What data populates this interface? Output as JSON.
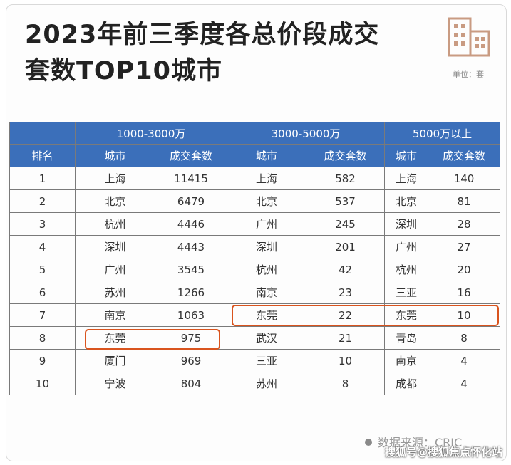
{
  "title": {
    "line1": "2023年前三季度各总价段成交",
    "line2": "套数TOP10城市"
  },
  "unit_label": "单位：套",
  "table": {
    "header_groups": [
      "1000-3000万",
      "3000-5000万",
      "5000万以上"
    ],
    "sub_headers": [
      "排名",
      "城市",
      "成交套数",
      "城市",
      "成交套数",
      "城市",
      "成交套数"
    ],
    "rows": [
      [
        "1",
        "上海",
        "11415",
        "上海",
        "582",
        "上海",
        "140"
      ],
      [
        "2",
        "北京",
        "6479",
        "北京",
        "537",
        "北京",
        "81"
      ],
      [
        "3",
        "杭州",
        "4446",
        "广州",
        "245",
        "深圳",
        "28"
      ],
      [
        "4",
        "深圳",
        "4443",
        "深圳",
        "201",
        "广州",
        "27"
      ],
      [
        "5",
        "广州",
        "3545",
        "杭州",
        "42",
        "杭州",
        "20"
      ],
      [
        "6",
        "苏州",
        "1266",
        "南京",
        "23",
        "三亚",
        "16"
      ],
      [
        "7",
        "南京",
        "1063",
        "东莞",
        "22",
        "东莞",
        "10"
      ],
      [
        "8",
        "东莞",
        "975",
        "武汉",
        "21",
        "青岛",
        "8"
      ],
      [
        "9",
        "厦门",
        "969",
        "三亚",
        "10",
        "南京",
        "4"
      ],
      [
        "10",
        "宁波",
        "804",
        "苏州",
        "8",
        "成都",
        "4"
      ]
    ]
  },
  "source": "数据来源：CRIC",
  "watermark": "搜狐号@搜狐焦点怀化站",
  "colors": {
    "header_bg": "#3b6fba",
    "highlight": "#d9541e",
    "logo": "#c99b82"
  }
}
